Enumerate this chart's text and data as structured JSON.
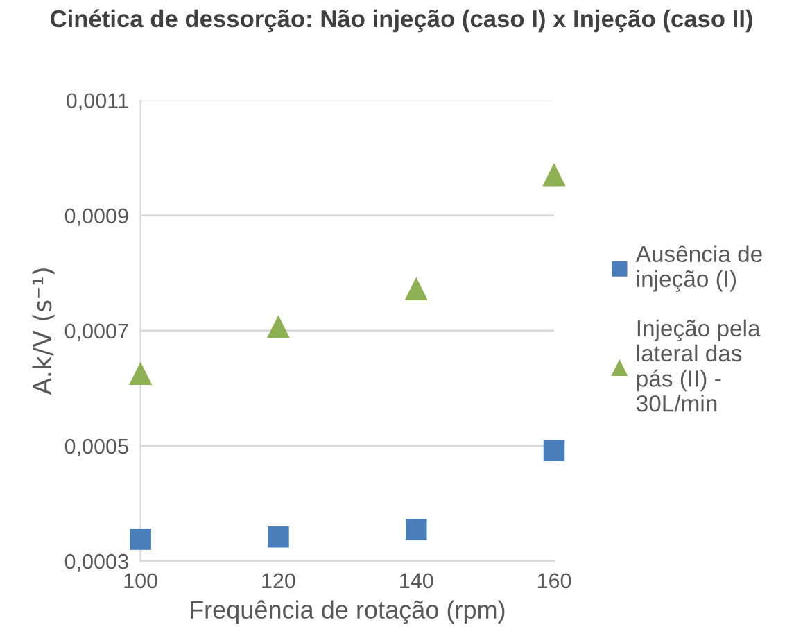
{
  "chart_data": {
    "type": "scatter",
    "title": "Cinética de dessorção: Não injeção (caso I) x Injeção (caso II)",
    "xlabel": "Frequência de rotação (rpm)",
    "ylabel": "A.k/V (s⁻¹)",
    "x": [
      100,
      120,
      140,
      160
    ],
    "series": [
      {
        "name": "Ausência de injeção (I)",
        "color": "#4a7ebb",
        "marker": "square",
        "values": [
          0.000338,
          0.000342,
          0.000355,
          0.000492
        ]
      },
      {
        "name": "Injeção pela lateral das pás (II) - 30L/min",
        "color": "#8db052",
        "marker": "triangle",
        "values": [
          0.000626,
          0.000707,
          0.000773,
          0.000971
        ]
      }
    ],
    "xlim": [
      100,
      160
    ],
    "xticks": [
      100,
      120,
      140,
      160
    ],
    "ylim": [
      0.0003,
      0.0011
    ],
    "yticks": [
      {
        "value": 0.0003,
        "label": "0,0003"
      },
      {
        "value": 0.0005,
        "label": "0,0005"
      },
      {
        "value": 0.0007,
        "label": "0,0007"
      },
      {
        "value": 0.0009,
        "label": "0,0009"
      },
      {
        "value": 0.0011,
        "label": "0,0011"
      }
    ],
    "grid": "y",
    "legend": "right"
  }
}
